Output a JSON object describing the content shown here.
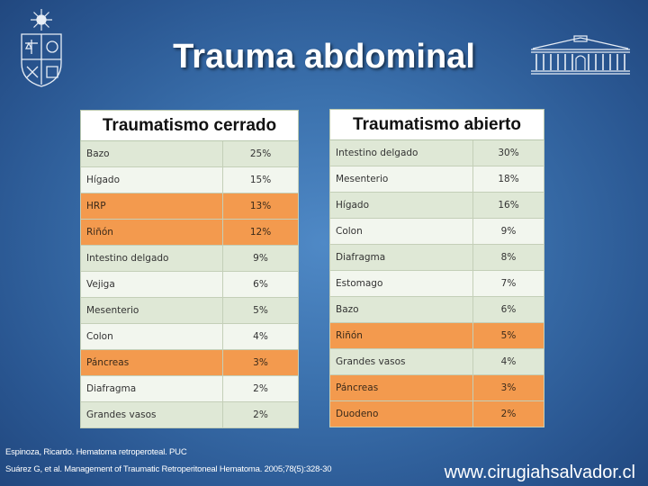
{
  "title": "Trauma abdominal",
  "logos": {
    "left": "university-crest-icon",
    "right": "building-facade-icon"
  },
  "table_closed": {
    "header": "Traumatismo cerrado",
    "rows": [
      {
        "organ": "Bazo",
        "value": "25%",
        "highlight": false
      },
      {
        "organ": "Hígado",
        "value": "15%",
        "highlight": false
      },
      {
        "organ": "HRP",
        "value": "13%",
        "highlight": true
      },
      {
        "organ": "Riñón",
        "value": "12%",
        "highlight": true
      },
      {
        "organ": "Intestino delgado",
        "value": "9%",
        "highlight": false
      },
      {
        "organ": "Vejiga",
        "value": "6%",
        "highlight": false
      },
      {
        "organ": "Mesenterio",
        "value": "5%",
        "highlight": false
      },
      {
        "organ": "Colon",
        "value": "4%",
        "highlight": false
      },
      {
        "organ": "Páncreas",
        "value": "3%",
        "highlight": true
      },
      {
        "organ": "Diafragma",
        "value": "2%",
        "highlight": false
      },
      {
        "organ": "Grandes vasos",
        "value": "2%",
        "highlight": false
      }
    ]
  },
  "table_open": {
    "header": "Traumatismo abierto",
    "rows": [
      {
        "organ": "Intestino delgado",
        "value": "30%",
        "highlight": false
      },
      {
        "organ": "Mesenterio",
        "value": "18%",
        "highlight": false
      },
      {
        "organ": "Hígado",
        "value": "16%",
        "highlight": false
      },
      {
        "organ": "Colon",
        "value": "9%",
        "highlight": false
      },
      {
        "organ": "Diafragma",
        "value": "8%",
        "highlight": false
      },
      {
        "organ": "Estomago",
        "value": "7%",
        "highlight": false
      },
      {
        "organ": "Bazo",
        "value": "6%",
        "highlight": false
      },
      {
        "organ": "Riñón",
        "value": "5%",
        "highlight": true
      },
      {
        "organ": "Grandes vasos",
        "value": "4%",
        "highlight": false
      },
      {
        "organ": "Páncreas",
        "value": "3%",
        "highlight": true
      },
      {
        "organ": "Duodeno",
        "value": "2%",
        "highlight": true
      }
    ]
  },
  "colors": {
    "highlight": "#f39a4e",
    "row_odd": "#dfe8d6",
    "row_even": "#f2f6ee",
    "background": "#3b71ad"
  },
  "references": [
    "Espinoza, Ricardo. Hematoma retroperoteal. PUC",
    "Suárez G, et al. Management of Traumatic Retroperitoneal Hematoma. 2005;78(5):328-30"
  ],
  "website": "www.cirugiahsalvador.cl"
}
